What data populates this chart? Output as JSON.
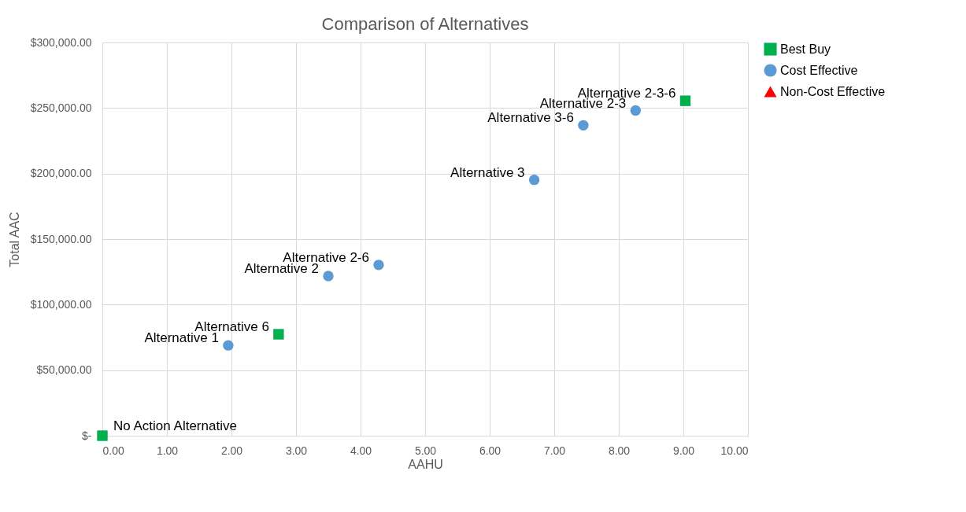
{
  "chart_data": {
    "type": "scatter",
    "title": "Comparison of Alternatives",
    "xlabel": "AAHU",
    "ylabel": "Total AAC",
    "series": [
      {
        "name": "Best Buy",
        "color": "#00b050",
        "marker": "square",
        "x": [
          0,
          2.73,
          9.03
        ],
        "values": [
          0,
          77400,
          255500
        ]
      },
      {
        "name": "Cost Effective",
        "color": "#5b9bd5",
        "marker": "circle",
        "x": [
          1.95,
          3.5,
          4.28,
          6.69,
          7.45,
          8.26
        ],
        "values": [
          68900,
          121800,
          130300,
          195200,
          236800,
          248100
        ]
      },
      {
        "name": "Non-Cost Effective",
        "color": "#ff0000",
        "marker": "triangle"
      }
    ],
    "xlim": [
      0,
      10
    ],
    "xticks": [
      {
        "value": 0,
        "label": "0.00"
      },
      {
        "value": 1,
        "label": "1.00"
      },
      {
        "value": 2,
        "label": "2.00"
      },
      {
        "value": 3,
        "label": "3.00"
      },
      {
        "value": 4,
        "label": "4.00"
      },
      {
        "value": 5,
        "label": "5.00"
      },
      {
        "value": 6,
        "label": "6.00"
      },
      {
        "value": 7,
        "label": "7.00"
      },
      {
        "value": 8,
        "label": "8.00"
      },
      {
        "value": 9,
        "label": "9.00"
      },
      {
        "value": 10,
        "label": "10.00"
      }
    ],
    "ylim": [
      0,
      300000
    ],
    "yticks": [
      {
        "value": 0,
        "label": "$-"
      },
      {
        "value": 50000,
        "label": "$50,000.00"
      },
      {
        "value": 100000,
        "label": "$100,000.00"
      },
      {
        "value": 150000,
        "label": "$150,000.00"
      },
      {
        "value": 200000,
        "label": "$200,000.00"
      },
      {
        "value": 250000,
        "label": "$250,000.00"
      },
      {
        "value": 300000,
        "label": "$300,000.00"
      }
    ],
    "grid": true,
    "legend": "right",
    "annotations": [
      {
        "text": "No Action Alternative",
        "x": 0,
        "y": 0
      },
      {
        "text": "Alternative 1",
        "x": 1.95,
        "y": 68900
      },
      {
        "text": "Alternative 6",
        "x": 2.73,
        "y": 77400
      },
      {
        "text": "Alternative 2",
        "x": 3.5,
        "y": 121800
      },
      {
        "text": "Alternative 2-6",
        "x": 4.28,
        "y": 130300
      },
      {
        "text": "Alternative 3",
        "x": 6.69,
        "y": 195200
      },
      {
        "text": "Alternative 3-6",
        "x": 7.45,
        "y": 236800
      },
      {
        "text": "Alternative 2-3",
        "x": 8.26,
        "y": 248100
      },
      {
        "text": "Alternative 2-3-6",
        "x": 9.03,
        "y": 255500
      }
    ]
  }
}
